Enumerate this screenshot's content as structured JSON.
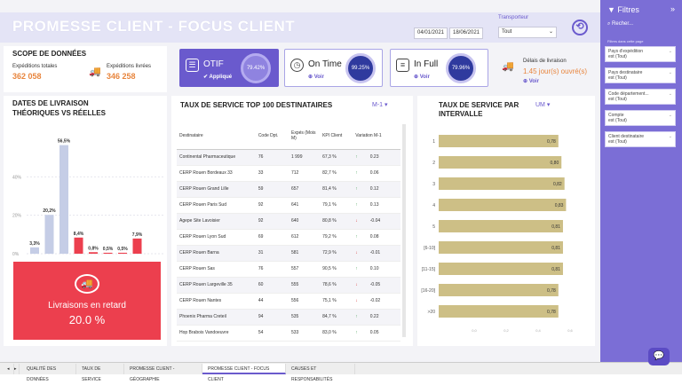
{
  "header": {
    "title": "PROMESSE CLIENT - FOCUS CLIENT",
    "date_from": "04/01/2021",
    "date_to": "18/06/2021",
    "transporteur_label": "Transporteur",
    "transporteur_value": "Tout"
  },
  "scope": {
    "title": "SCOPE DE DONNÉES",
    "shipped_label": "Expéditions totales",
    "shipped_value": "362 058",
    "delivered_label": "Expéditions livrées",
    "delivered_value": "346 258"
  },
  "kpis": [
    {
      "title": "OTIF",
      "sub": "Appliqué",
      "value": "79.42%"
    },
    {
      "title": "On Time",
      "sub": "Voir",
      "value": "99.25%"
    },
    {
      "title": "In Full",
      "sub": "Voir",
      "value": "79.96%"
    }
  ],
  "delai": {
    "label": "Délais de livraison",
    "value": "1.45 jour(s) ouvré(s)",
    "sub": "Voir"
  },
  "dates_chart": {
    "title_line1": "DATES DE LIVRAISON",
    "title_line2": "THÉORIQUES VS RÉELLES",
    "y_ticks": [
      "40%",
      "20%",
      "0%"
    ],
    "ylim": [
      0,
      60
    ],
    "bars": [
      {
        "value": 3.3,
        "label": "3,3%",
        "color": "#c5cde6"
      },
      {
        "value": 20.2,
        "label": "20,2%",
        "color": "#c5cde6"
      },
      {
        "value": 56.5,
        "label": "56,5%",
        "color": "#c5cde6"
      },
      {
        "value": 8.4,
        "label": "8,4%",
        "color": "#ec3f4e"
      },
      {
        "value": 0.8,
        "label": "0,8%",
        "color": "#ec3f4e"
      },
      {
        "value": 0.5,
        "label": "0,5%",
        "color": "#ec3f4e"
      },
      {
        "value": 0.5,
        "label": "0,5%",
        "color": "#ec3f4e"
      },
      {
        "value": 7.9,
        "label": "7,9%",
        "color": "#ec3f4e"
      }
    ]
  },
  "late": {
    "label": "Livraisons en retard",
    "value": "20.0 %"
  },
  "top100": {
    "title": "TAUX DE SERVICE TOP 100 DESTINATAIRES",
    "period": "M-1",
    "columns": [
      "Destinataire",
      "Code Dpt.",
      "Expés (Mois M)",
      "KPI Client",
      "Variation M-1"
    ],
    "rows": [
      {
        "name": "Continental Pharmaceutique",
        "dpt": "76",
        "exp": "1 999",
        "kpi": "67,3 %",
        "dir": "up",
        "var": "0.23"
      },
      {
        "name": "CERP Rouen Bordeaux 33",
        "dpt": "33",
        "exp": "712",
        "kpi": "82,7 %",
        "dir": "up",
        "var": "0.06"
      },
      {
        "name": "CERP Rouen Grand Lille",
        "dpt": "59",
        "exp": "657",
        "kpi": "81,4 %",
        "dir": "up",
        "var": "0.12"
      },
      {
        "name": "CERP Rouen Paris Sud",
        "dpt": "92",
        "exp": "641",
        "kpi": "79,1 %",
        "dir": "up",
        "var": "0.13"
      },
      {
        "name": "Agepe Site Lavoisier",
        "dpt": "92",
        "exp": "640",
        "kpi": "80,8 %",
        "dir": "down",
        "var": "-0.04"
      },
      {
        "name": "CERP Rouen Lyon Sud",
        "dpt": "69",
        "exp": "612",
        "kpi": "79,2 %",
        "dir": "up",
        "var": "0.08"
      },
      {
        "name": "CERP Rouen Barna",
        "dpt": "31",
        "exp": "581",
        "kpi": "72,9 %",
        "dir": "down",
        "var": "-0.01"
      },
      {
        "name": "CERP Rouen Sas",
        "dpt": "76",
        "exp": "557",
        "kpi": "90,5 %",
        "dir": "up",
        "var": "0.10"
      },
      {
        "name": "CERP Rouen Largeville 35",
        "dpt": "60",
        "exp": "555",
        "kpi": "78,6 %",
        "dir": "down",
        "var": "-0.05"
      },
      {
        "name": "CERP Rouen Nantes",
        "dpt": "44",
        "exp": "556",
        "kpi": "75,1 %",
        "dir": "down",
        "var": "-0.02"
      },
      {
        "name": "Phoenix Pharma Creteil",
        "dpt": "94",
        "exp": "535",
        "kpi": "84,7 %",
        "dir": "up",
        "var": "0.22"
      },
      {
        "name": "Hop Brabois Vandoeuvre",
        "dpt": "54",
        "exp": "533",
        "kpi": "83,0 %",
        "dir": "up",
        "var": "0.05"
      }
    ]
  },
  "chart_data": {
    "type": "bar",
    "title": "TAUX DE SERVICE PAR INTERVALLE",
    "unit_selector": "UM",
    "categories": [
      "1",
      "2",
      "3",
      "4",
      "5",
      "[6-10]",
      "[11-15]",
      "[16-20]",
      ">20"
    ],
    "values": [
      0.78,
      0.8,
      0.82,
      0.83,
      0.81,
      0.81,
      0.81,
      0.78,
      0.78
    ],
    "labels": [
      "0,78",
      "0,80",
      "0,82",
      "0,83",
      "0,81",
      "0,81",
      "0,81",
      "0,78",
      "0,78"
    ],
    "x_ticks": [
      "0,0",
      "0,2",
      "0,4",
      "0,6"
    ],
    "xlim": [
      0,
      1
    ],
    "color": "#cdbf86"
  },
  "filters": {
    "title": "Filtres",
    "search": "Recher...",
    "section": "Filtres dans cette page",
    "items": [
      {
        "name": "Pays d'expédition",
        "value": "est (Tout)"
      },
      {
        "name": "Pays destinataire",
        "value": "est (Tout)"
      },
      {
        "name": "Code département...",
        "value": "est (Tout)"
      },
      {
        "name": "Compte",
        "value": "est (Tout)"
      },
      {
        "name": "Client destinataire",
        "value": "est (Tout)"
      }
    ]
  },
  "tabs": [
    "QUALITÉ DES DONNÉES",
    "TAUX DE SERVICE",
    "PROMESSE CLIENT - GÉOGRAPHIE",
    "PROMESSE CLIENT - FOCUS CLIENT",
    "CAUSES ET RESPONSABILITÉS"
  ]
}
